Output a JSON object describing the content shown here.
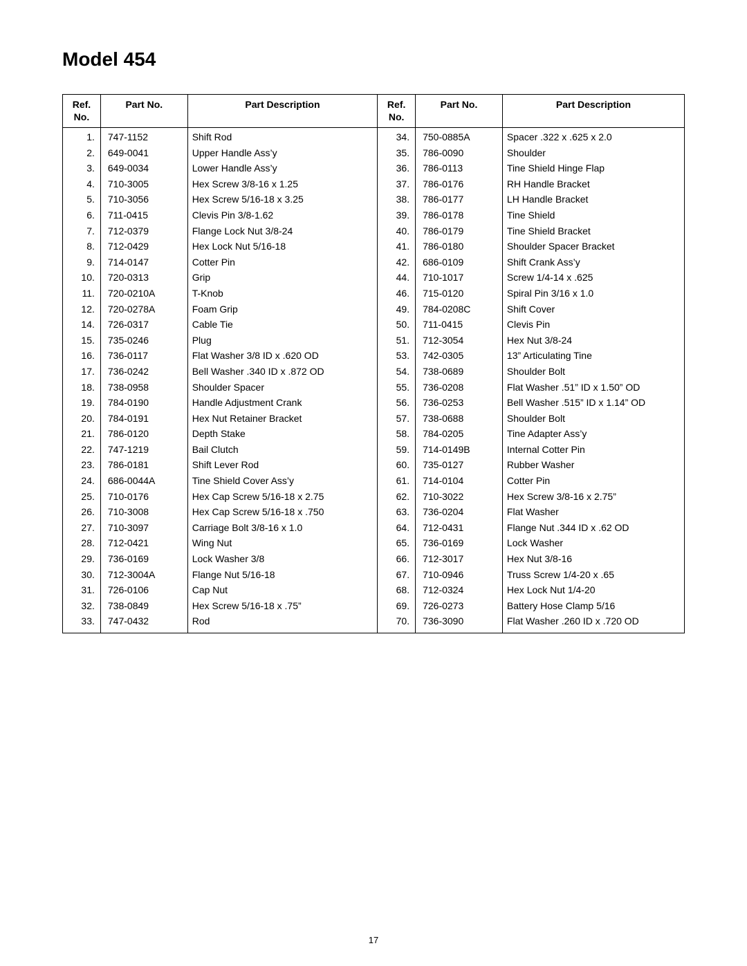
{
  "title": "Model 454",
  "page_number": "17",
  "headers": {
    "ref_no": "Ref.\nNo.",
    "part_no": "Part No.",
    "part_desc": "Part Description"
  },
  "left_rows": [
    {
      "ref": "1.",
      "pn": "747-1152",
      "desc": "Shift Rod"
    },
    {
      "ref": "2.",
      "pn": "649-0041",
      "desc": "Upper Handle Ass’y"
    },
    {
      "ref": "3.",
      "pn": "649-0034",
      "desc": "Lower Handle Ass’y"
    },
    {
      "ref": "4.",
      "pn": "710-3005",
      "desc": "Hex Screw 3/8-16 x 1.25"
    },
    {
      "ref": "5.",
      "pn": "710-3056",
      "desc": "Hex Screw 5/16-18 x 3.25"
    },
    {
      "ref": "6.",
      "pn": "711-0415",
      "desc": "Clevis Pin 3/8-1.62"
    },
    {
      "ref": "7.",
      "pn": "712-0379",
      "desc": "Flange Lock Nut 3/8-24"
    },
    {
      "ref": "8.",
      "pn": "712-0429",
      "desc": "Hex Lock Nut 5/16-18"
    },
    {
      "ref": "9.",
      "pn": "714-0147",
      "desc": "Cotter Pin"
    },
    {
      "ref": "10.",
      "pn": "720-0313",
      "desc": "Grip"
    },
    {
      "ref": "11.",
      "pn": "720-0210A",
      "desc": "T-Knob"
    },
    {
      "ref": "12.",
      "pn": "720-0278A",
      "desc": "Foam Grip"
    },
    {
      "ref": "14.",
      "pn": "726-0317",
      "desc": "Cable Tie"
    },
    {
      "ref": "15.",
      "pn": "735-0246",
      "desc": "Plug"
    },
    {
      "ref": "16.",
      "pn": "736-0117",
      "desc": "Flat Washer 3/8 ID x .620 OD"
    },
    {
      "ref": "17.",
      "pn": "736-0242",
      "desc": "Bell Washer .340 ID x .872 OD"
    },
    {
      "ref": "18.",
      "pn": "738-0958",
      "desc": "Shoulder Spacer"
    },
    {
      "ref": "19.",
      "pn": "784-0190",
      "desc": "Handle Adjustment Crank"
    },
    {
      "ref": "20.",
      "pn": "784-0191",
      "desc": "Hex Nut Retainer Bracket"
    },
    {
      "ref": "21.",
      "pn": "786-0120",
      "desc": "Depth Stake"
    },
    {
      "ref": "22.",
      "pn": "747-1219",
      "desc": "Bail Clutch"
    },
    {
      "ref": "23.",
      "pn": "786-0181",
      "desc": "Shift Lever Rod"
    },
    {
      "ref": "24.",
      "pn": "686-0044A",
      "desc": "Tine Shield Cover Ass’y"
    },
    {
      "ref": "25.",
      "pn": "710-0176",
      "desc": "Hex Cap Screw 5/16-18 x 2.75"
    },
    {
      "ref": "26.",
      "pn": "710-3008",
      "desc": "Hex Cap Screw 5/16-18 x .750"
    },
    {
      "ref": "27.",
      "pn": "710-3097",
      "desc": "Carriage Bolt 3/8-16 x 1.0"
    },
    {
      "ref": "28.",
      "pn": "712-0421",
      "desc": "Wing Nut"
    },
    {
      "ref": "29.",
      "pn": "736-0169",
      "desc": "Lock Washer 3/8"
    },
    {
      "ref": "30.",
      "pn": "712-3004A",
      "desc": "Flange Nut 5/16-18"
    },
    {
      "ref": "31.",
      "pn": "726-0106",
      "desc": "Cap Nut"
    },
    {
      "ref": "32.",
      "pn": "738-0849",
      "desc": "Hex Screw 5/16-18 x .75”"
    },
    {
      "ref": "33.",
      "pn": "747-0432",
      "desc": "Rod"
    }
  ],
  "right_rows": [
    {
      "ref": "34.",
      "pn": "750-0885A",
      "desc": "Spacer .322 x .625 x 2.0"
    },
    {
      "ref": "35.",
      "pn": "786-0090",
      "desc": "Shoulder"
    },
    {
      "ref": "36.",
      "pn": "786-0113",
      "desc": "Tine Shield Hinge Flap"
    },
    {
      "ref": "37.",
      "pn": "786-0176",
      "desc": "RH Handle Bracket"
    },
    {
      "ref": "38.",
      "pn": "786-0177",
      "desc": "LH Handle Bracket"
    },
    {
      "ref": "39.",
      "pn": "786-0178",
      "desc": "Tine Shield"
    },
    {
      "ref": "40.",
      "pn": "786-0179",
      "desc": "Tine Shield Bracket"
    },
    {
      "ref": "41.",
      "pn": "786-0180",
      "desc": "Shoulder Spacer Bracket"
    },
    {
      "ref": "42.",
      "pn": "686-0109",
      "desc": "Shift Crank Ass’y"
    },
    {
      "ref": "44.",
      "pn": "710-1017",
      "desc": "Screw 1/4-14 x .625"
    },
    {
      "ref": "46.",
      "pn": "715-0120",
      "desc": "Spiral Pin 3/16 x 1.0"
    },
    {
      "ref": "49.",
      "pn": "784-0208C",
      "desc": "Shift Cover"
    },
    {
      "ref": "50.",
      "pn": "711-0415",
      "desc": "Clevis Pin"
    },
    {
      "ref": "51.",
      "pn": "712-3054",
      "desc": "Hex Nut 3/8-24"
    },
    {
      "ref": "53.",
      "pn": "742-0305",
      "desc": "13” Articulating Tine"
    },
    {
      "ref": "54.",
      "pn": "738-0689",
      "desc": "Shoulder Bolt"
    },
    {
      "ref": "55.",
      "pn": "736-0208",
      "desc": "Flat Washer .51” ID x 1.50” OD"
    },
    {
      "ref": "56.",
      "pn": "736-0253",
      "desc": "Bell Washer .515” ID x 1.14” OD"
    },
    {
      "ref": "57.",
      "pn": "738-0688",
      "desc": "Shoulder Bolt"
    },
    {
      "ref": "58.",
      "pn": "784-0205",
      "desc": "Tine Adapter Ass’y"
    },
    {
      "ref": "59.",
      "pn": "714-0149B",
      "desc": "Internal Cotter Pin"
    },
    {
      "ref": "60.",
      "pn": "735-0127",
      "desc": "Rubber Washer"
    },
    {
      "ref": "61.",
      "pn": "714-0104",
      "desc": "Cotter Pin"
    },
    {
      "ref": "62.",
      "pn": "710-3022",
      "desc": "Hex Screw 3/8-16 x 2.75”"
    },
    {
      "ref": "63.",
      "pn": "736-0204",
      "desc": "Flat Washer"
    },
    {
      "ref": "64.",
      "pn": "712-0431",
      "desc": "Flange Nut .344 ID x .62 OD"
    },
    {
      "ref": "65.",
      "pn": "736-0169",
      "desc": "Lock Washer"
    },
    {
      "ref": "66.",
      "pn": "712-3017",
      "desc": "Hex Nut 3/8-16"
    },
    {
      "ref": "67.",
      "pn": "710-0946",
      "desc": "Truss Screw 1/4-20 x .65"
    },
    {
      "ref": "68.",
      "pn": "712-0324",
      "desc": "Hex Lock Nut 1/4-20"
    },
    {
      "ref": "69.",
      "pn": "726-0273",
      "desc": "Battery Hose Clamp 5/16"
    },
    {
      "ref": "70.",
      "pn": "736-3090",
      "desc": "Flat Washer .260 ID x .720 OD"
    }
  ]
}
